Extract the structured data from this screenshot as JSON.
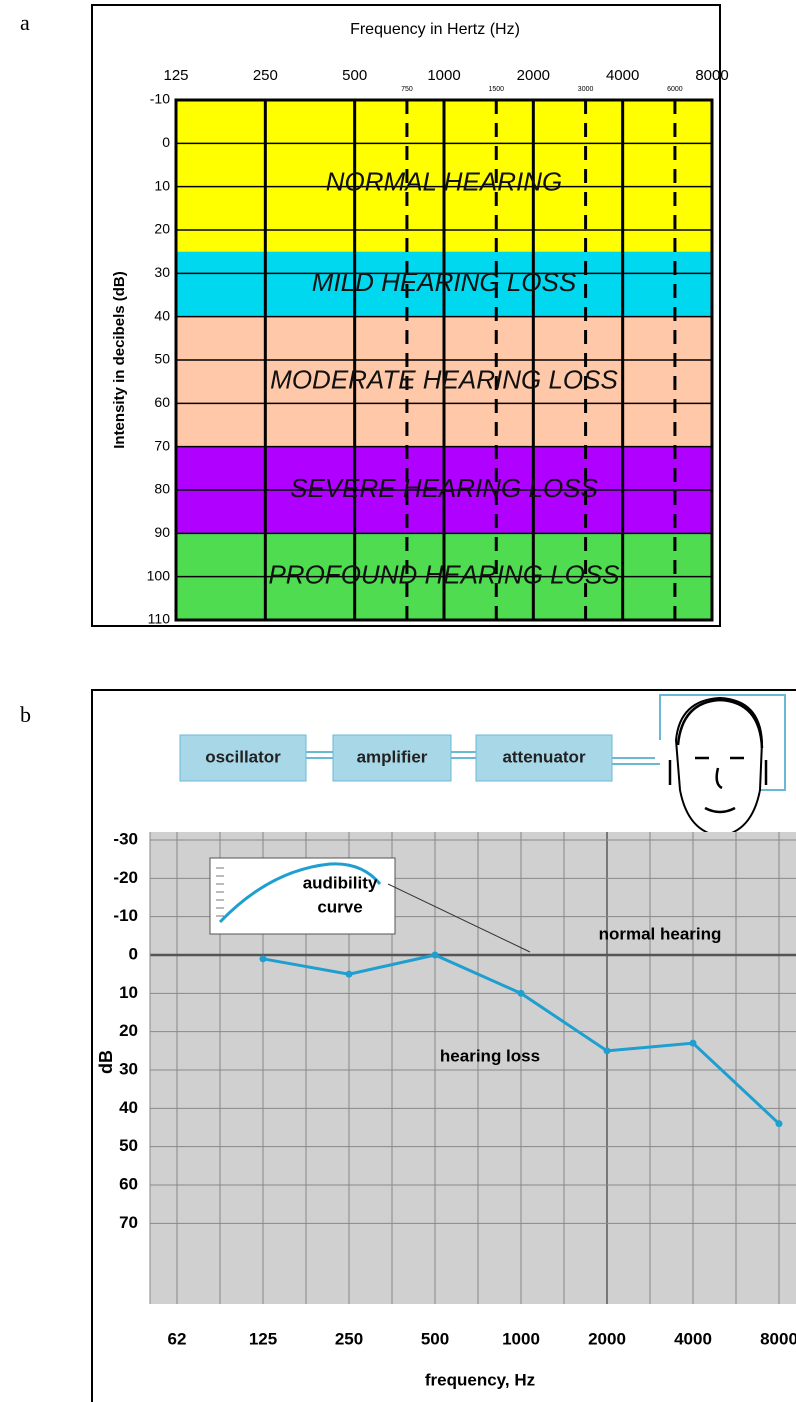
{
  "panel_labels": [
    "a",
    "b"
  ],
  "chart_data": [
    {
      "type": "band",
      "x_label": "Frequency in Hertz (Hz)",
      "y_label": "Intensity in decibels (dB)",
      "x_scale": "log",
      "xlim": [
        125,
        8000
      ],
      "xticks": [
        125,
        250,
        500,
        1000,
        2000,
        4000,
        8000
      ],
      "x_dashed_ticks": [
        750,
        1500,
        3000,
        6000
      ],
      "ylim": [
        -10,
        110
      ],
      "y_inverted": true,
      "yticks": [
        -10,
        0,
        10,
        20,
        30,
        40,
        50,
        60,
        70,
        80,
        90,
        100,
        110
      ],
      "bands": [
        {
          "name": "NORMAL HEARING",
          "range": [
            -10,
            25
          ],
          "color": "#ffff00"
        },
        {
          "name": "MILD HEARING LOSS",
          "range": [
            25,
            40
          ],
          "color": "#00d8f0"
        },
        {
          "name": "MODERATE HEARING LOSS",
          "range": [
            40,
            70
          ],
          "color": "#ffc8a8"
        },
        {
          "name": "SEVERE HEARING LOSS",
          "range": [
            70,
            90
          ],
          "color": "#b000ff"
        },
        {
          "name": "PROFOUND HEARING LOSS",
          "range": [
            90,
            110
          ],
          "color": "#50dc50"
        }
      ]
    },
    {
      "type": "line",
      "diagram": [
        "oscillator",
        "amplifier",
        "attenuator"
      ],
      "x_label": "frequency, Hz",
      "y_label": "dB",
      "categories": [
        "62",
        "125",
        "250",
        "500",
        "1000",
        "2000",
        "4000",
        "8000"
      ],
      "values": [
        null,
        1,
        5,
        0,
        10,
        25,
        23,
        44
      ],
      "color": "#1e9fd0",
      "ylim": [
        -30,
        90
      ],
      "y_inverted": true,
      "yticks": [
        -30,
        -20,
        -10,
        0,
        10,
        20,
        30,
        40,
        50,
        60,
        70
      ],
      "reference_line": 0,
      "annotations": [
        "normal hearing",
        "hearing loss"
      ],
      "inset_label": [
        "audibility",
        "curve"
      ]
    }
  ]
}
